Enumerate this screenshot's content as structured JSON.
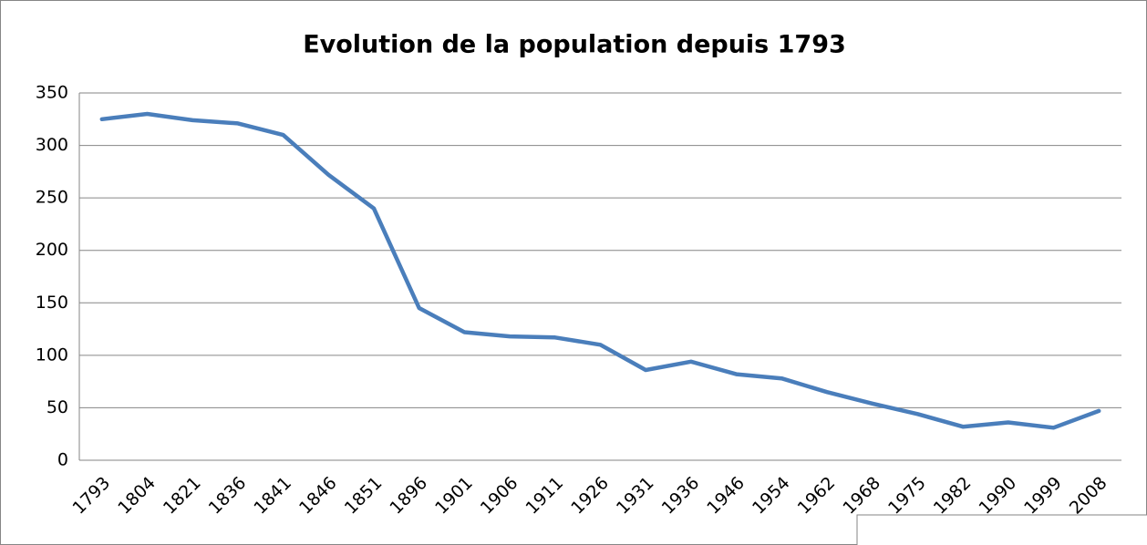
{
  "chart_data": {
    "type": "line",
    "title": "Evolution de la population depuis 1793",
    "categories": [
      "1793",
      "1804",
      "1821",
      "1836",
      "1841",
      "1846",
      "1851",
      "1896",
      "1901",
      "1906",
      "1911",
      "1926",
      "1931",
      "1936",
      "1946",
      "1954",
      "1962",
      "1968",
      "1975",
      "1982",
      "1990",
      "1999",
      "2008"
    ],
    "series": [
      {
        "name": null,
        "color": "#4a7ebb",
        "values": [
          325,
          330,
          324,
          321,
          310,
          272,
          240,
          145,
          122,
          118,
          117,
          110,
          86,
          94,
          82,
          78,
          65,
          54,
          44,
          32,
          36,
          31,
          47
        ]
      }
    ],
    "ylim": [
      0,
      350
    ],
    "yticks": [
      0,
      50,
      100,
      150,
      200,
      250,
      300,
      350
    ],
    "grid": true
  }
}
